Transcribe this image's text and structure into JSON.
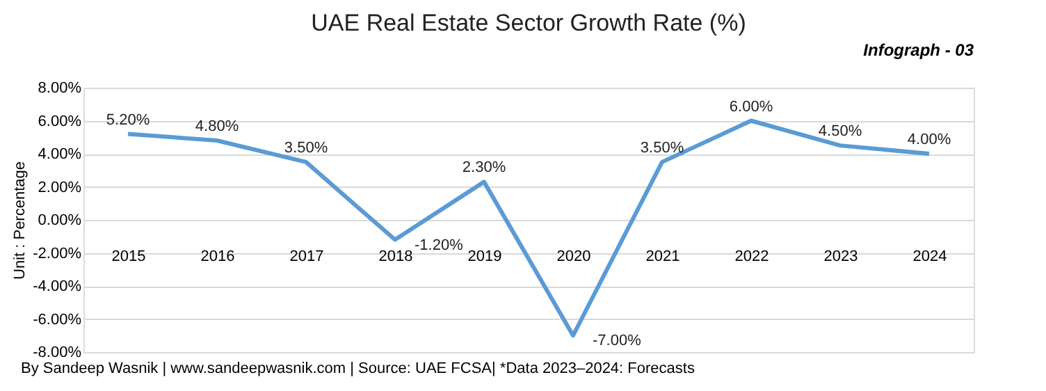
{
  "chart_data": {
    "type": "line",
    "title": "UAE Real Estate Sector Growth Rate (%)",
    "ylabel": "Unit : Percentage",
    "categories": [
      "2015",
      "2016",
      "2017",
      "2018",
      "2019",
      "2020",
      "2021",
      "2022",
      "2023",
      "2024"
    ],
    "series": [
      {
        "color": "#5b9bd5",
        "values": [
          5.2,
          4.8,
          3.5,
          -1.2,
          2.3,
          -7.0,
          3.5,
          6.0,
          4.5,
          4.0
        ],
        "value_labels": [
          "5.20%",
          "4.80%",
          "3.50%",
          "-1.20%",
          "2.30%",
          "-7.00%",
          "3.50%",
          "6.00%",
          "4.50%",
          "4.00%"
        ]
      }
    ],
    "ylim": [
      -8,
      8
    ],
    "yticks": [
      {
        "value": -8,
        "label": "-8.00%"
      },
      {
        "value": -6,
        "label": "-6.00%"
      },
      {
        "value": -4,
        "label": "-4.00%"
      },
      {
        "value": -2,
        "label": "-2.00%"
      },
      {
        "value": 0,
        "label": "0.00%"
      },
      {
        "value": 2,
        "label": "2.00%"
      },
      {
        "value": 4,
        "label": "4.00%"
      },
      {
        "value": 6,
        "label": "6.00%"
      },
      {
        "value": 8,
        "label": "8.00%"
      }
    ],
    "grid": "y",
    "legend": false,
    "marker": "none",
    "line_style": "solid",
    "annotations": [
      "Infograph - 03",
      "By Sandeep Wasnik | www.sandeepwasnik.com | Source: UAE FCSA| *Data 2023–2024: Forecasts"
    ]
  }
}
